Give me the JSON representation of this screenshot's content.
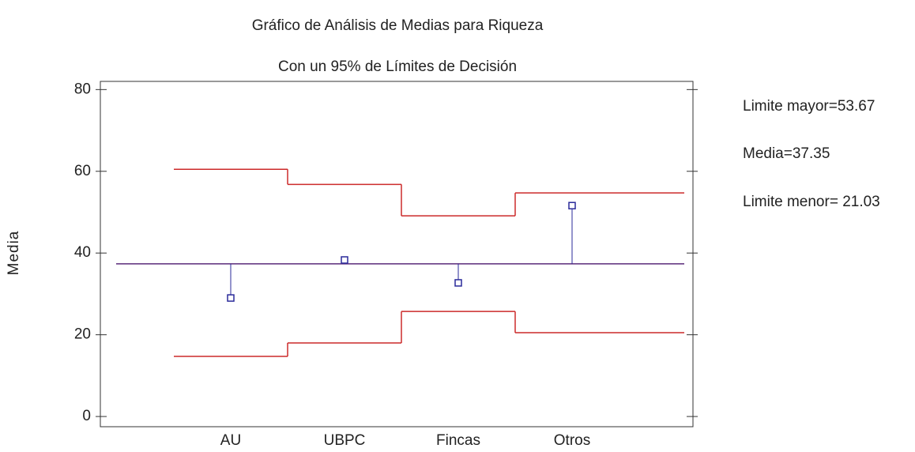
{
  "chart_data": {
    "type": "anom",
    "title": "Gráfico de Análisis de Medias para Riqueza",
    "subtitle": "Con un 95% de Límites de Decisión",
    "y_label": "Media",
    "categories": [
      "AU",
      "UBPC",
      "Fincas",
      "Otros"
    ],
    "series": [
      {
        "name": "Media",
        "color": "#2a2a9a",
        "values": [
          29.0,
          38.3,
          32.7,
          51.6
        ]
      },
      {
        "name": "Limite mayor",
        "color": "#cc2a2a",
        "values": [
          60.5,
          56.8,
          49.1,
          54.7
        ]
      },
      {
        "name": "Limite menor",
        "color": "#cc2a2a",
        "values": [
          14.7,
          18.0,
          25.7,
          20.5
        ]
      }
    ],
    "center": 37.35,
    "center_color": "#5a2a7a",
    "annotations": [
      "Limite mayor=53.67",
      "Media=37.35",
      "Limite menor= 21.03"
    ],
    "ylim": [
      -2.5,
      82
    ],
    "yticks": [
      0,
      20,
      40,
      60,
      80
    ]
  }
}
